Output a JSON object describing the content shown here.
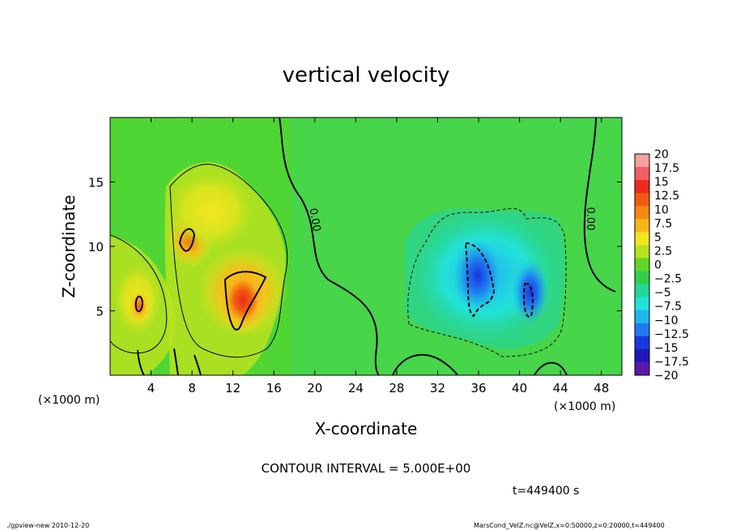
{
  "chart_data": {
    "type": "heatmap",
    "title": "vertical velocity",
    "xlabel": "X-coordinate",
    "ylabel": "Z-coordinate",
    "x_unit_left": "(×1000 m)",
    "x_unit_right": "(×1000 m)",
    "xlim": [
      0,
      50
    ],
    "ylim": [
      0,
      20
    ],
    "x_ticks": [
      4,
      8,
      12,
      16,
      20,
      24,
      28,
      32,
      36,
      40,
      44,
      48
    ],
    "y_ticks": [
      5,
      10,
      15
    ],
    "contour_interval_text": "CONTOUR INTERVAL = 5.000E+00",
    "time_text": "t=449400 s",
    "contour_labels": [
      "0.00",
      "0.00"
    ],
    "colorbar": {
      "levels": [
        "20",
        "17.5",
        "15",
        "12.5",
        "10",
        "7.5",
        "5",
        "2.5",
        "0",
        "−2.5",
        "−5",
        "−7.5",
        "−10",
        "−12.5",
        "−15",
        "−17.5",
        "−20"
      ],
      "colors": [
        "#f7a0a0",
        "#f26060",
        "#ee2a1f",
        "#f25a10",
        "#f58a12",
        "#f7b51a",
        "#f3e61e",
        "#b8e21e",
        "#5fd82a",
        "#2ecf4a",
        "#24d69a",
        "#22e2d8",
        "#20b6f0",
        "#1f7af0",
        "#1838e0",
        "#1e18b8",
        "#5a18a8"
      ]
    },
    "features": [
      {
        "kind": "updraft",
        "x": 12.5,
        "z": 6,
        "peak": 17.5
      },
      {
        "kind": "updraft",
        "x": 7.5,
        "z": 10.5,
        "peak": 12.5
      },
      {
        "kind": "updraft",
        "x": 2.5,
        "z": 6,
        "peak": 10
      },
      {
        "kind": "downdraft",
        "x": 35,
        "z": 8,
        "peak": -12.5
      },
      {
        "kind": "downdraft",
        "x": 40.5,
        "z": 5.5,
        "peak": -10
      }
    ]
  },
  "footer": {
    "left": "./gpview-new   2010-12-20",
    "right": "MarsCond_VelZ.nc@VelZ,x=0:50000,z=0:20000,t=449400"
  }
}
